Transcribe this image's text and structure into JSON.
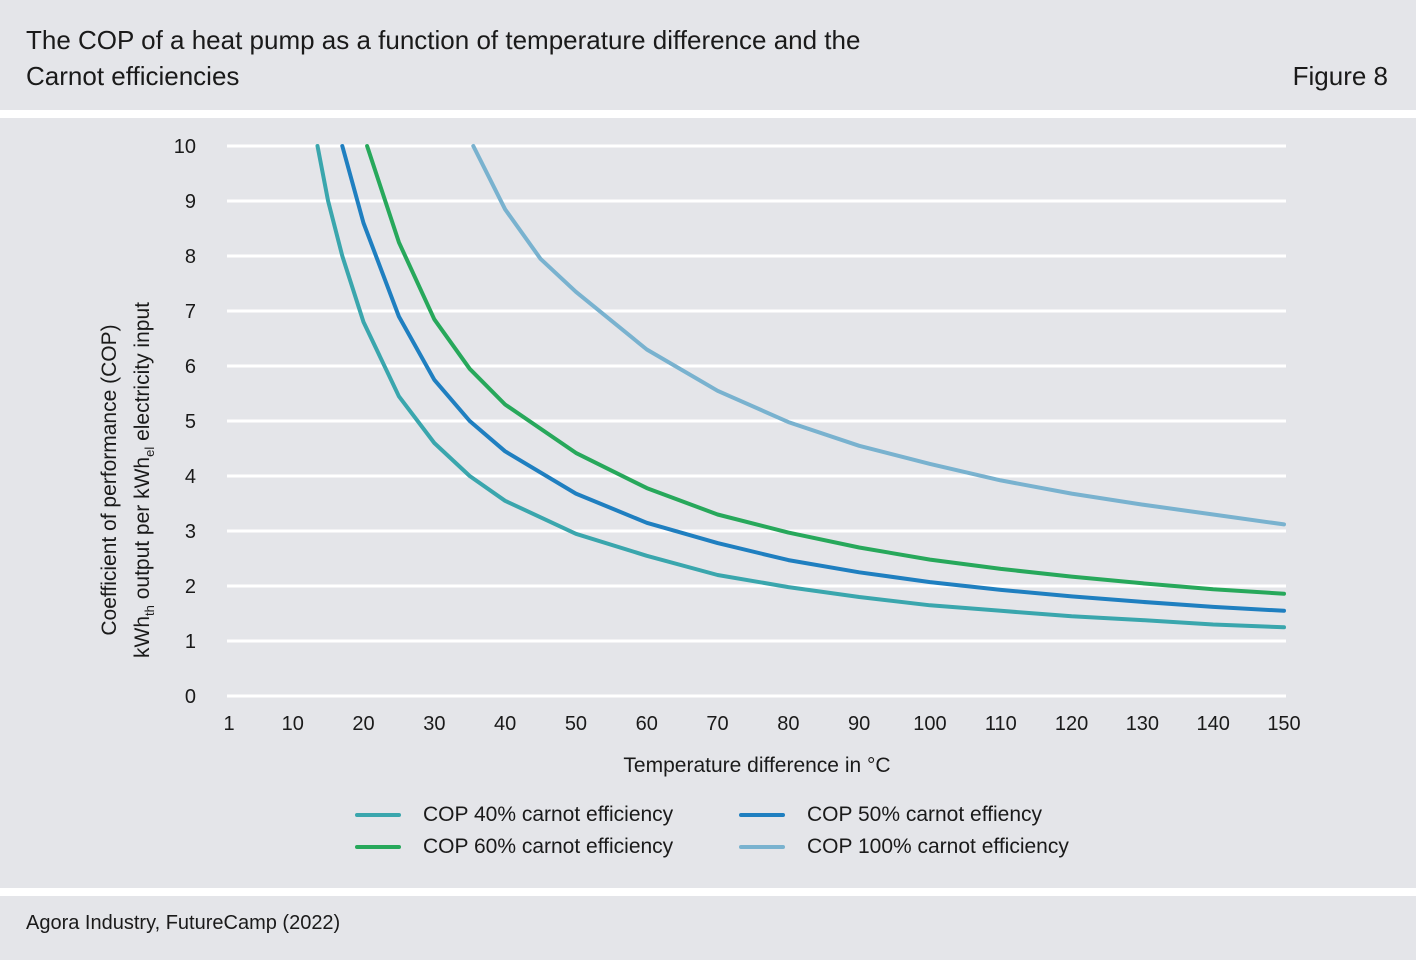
{
  "header": {
    "title": "The COP of a heat pump as a function of temperature difference and the Carnot efficiencies",
    "figure_label": "Figure 8"
  },
  "footer": {
    "source": "Agora Industry, FutureCamp (2022)"
  },
  "chart_data": {
    "type": "line",
    "xlabel": "Temperature difference in °C",
    "ylabel_line1": "Coefficient of performance (COP)",
    "ylabel_line2": {
      "a": "kWh",
      "a_sub": "th",
      "b": " output per kWh",
      "b_sub": "el",
      "c": " electricity input"
    },
    "x_ticks": [
      "1",
      "10",
      "20",
      "30",
      "40",
      "50",
      "60",
      "70",
      "80",
      "90",
      "100",
      "110",
      "120",
      "130",
      "140",
      "150"
    ],
    "y_ticks": [
      "0",
      "1",
      "2",
      "3",
      "4",
      "5",
      "6",
      "7",
      "8",
      "9",
      "10"
    ],
    "xlim": [
      1,
      150
    ],
    "ylim": [
      0,
      10
    ],
    "grid": true,
    "legend_placement": "bottom",
    "series": [
      {
        "name": "COP 40% carnot efficiency",
        "color": "#3aa6ad",
        "x": [
          13.5,
          15,
          17,
          20,
          25,
          30,
          35,
          40,
          50,
          60,
          70,
          80,
          90,
          100,
          110,
          120,
          130,
          140,
          150
        ],
        "y": [
          10,
          9,
          8,
          6.8,
          5.45,
          4.6,
          4.0,
          3.55,
          2.95,
          2.55,
          2.2,
          1.98,
          1.8,
          1.65,
          1.55,
          1.45,
          1.38,
          1.3,
          1.25
        ]
      },
      {
        "name": "COP 50% carnot effiency",
        "color": "#1f7fc0",
        "x": [
          17,
          20,
          25,
          30,
          35,
          40,
          50,
          60,
          70,
          80,
          90,
          100,
          110,
          120,
          130,
          140,
          150
        ],
        "y": [
          10,
          8.6,
          6.9,
          5.75,
          5.0,
          4.45,
          3.68,
          3.15,
          2.78,
          2.47,
          2.25,
          2.07,
          1.93,
          1.81,
          1.71,
          1.62,
          1.55
        ]
      },
      {
        "name": "COP 60% carnot efficiency",
        "color": "#27a85b",
        "x": [
          20.5,
          25,
          30,
          35,
          40,
          50,
          60,
          70,
          80,
          90,
          100,
          110,
          120,
          130,
          140,
          150
        ],
        "y": [
          10,
          8.25,
          6.85,
          5.95,
          5.3,
          4.42,
          3.78,
          3.3,
          2.97,
          2.7,
          2.48,
          2.31,
          2.17,
          2.05,
          1.94,
          1.86
        ]
      },
      {
        "name": "COP 100% carnot efficiency",
        "color": "#79b2cf",
        "x": [
          35.5,
          40,
          45,
          50,
          60,
          70,
          80,
          90,
          100,
          110,
          120,
          130,
          140,
          150
        ],
        "y": [
          10,
          8.85,
          7.95,
          7.35,
          6.3,
          5.55,
          4.98,
          4.55,
          4.22,
          3.92,
          3.68,
          3.48,
          3.3,
          3.12
        ]
      }
    ]
  }
}
